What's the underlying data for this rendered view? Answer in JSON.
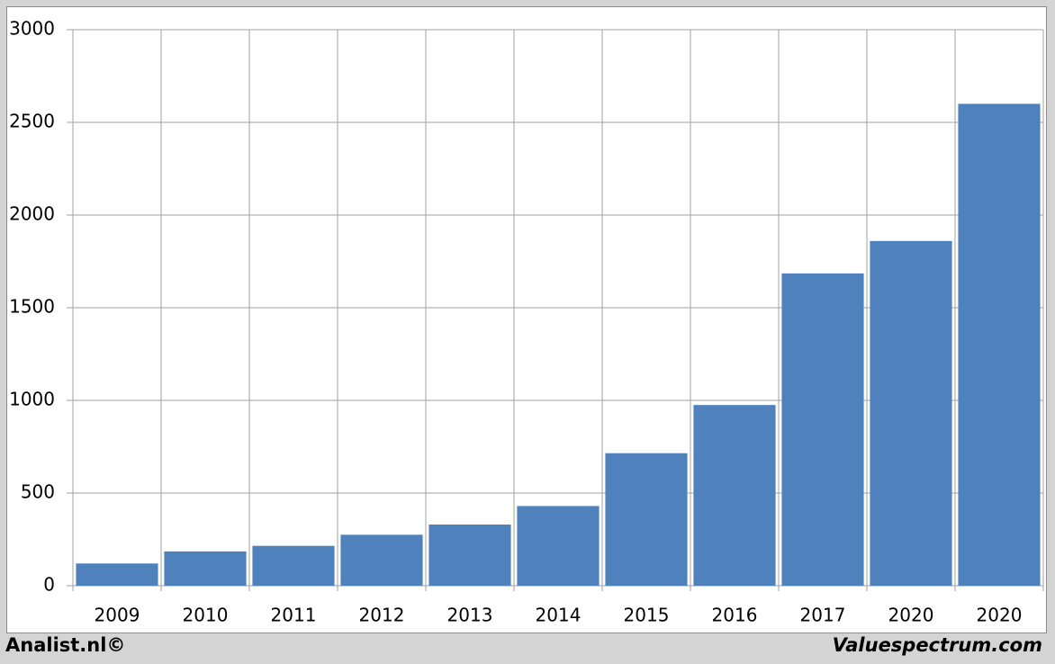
{
  "chart_data": {
    "type": "bar",
    "categories": [
      "2009",
      "2010",
      "2011",
      "2012",
      "2013",
      "2014",
      "2015",
      "2016",
      "2017",
      "2020",
      "2020"
    ],
    "values": [
      120,
      185,
      215,
      275,
      330,
      430,
      715,
      975,
      1685,
      1860,
      2600
    ],
    "color": "#4f81bd",
    "ylim": [
      0,
      3000
    ],
    "yticks": [
      0,
      500,
      1000,
      1500,
      2000,
      2500,
      3000
    ],
    "grid": true
  },
  "footer": {
    "left": "Analist.nl©",
    "right": "Valuespectrum.com"
  }
}
